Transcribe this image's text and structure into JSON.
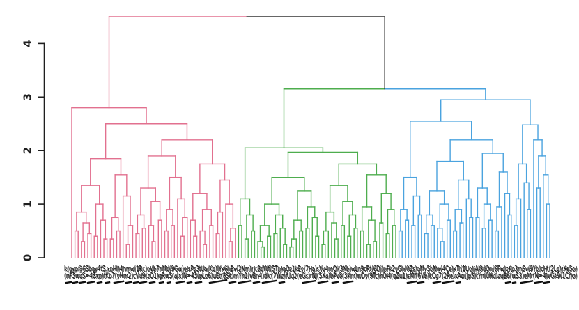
{
  "chart_data": {
    "type": "dendrogram",
    "title": "",
    "xlabel": "",
    "ylabel": "",
    "grid": false,
    "legend": "none",
    "y_axis": {
      "ticks": [
        0,
        1,
        2,
        3,
        4
      ],
      "tick_labels": [
        "0",
        "1",
        "2",
        "3",
        "4"
      ],
      "ylim": [
        0,
        4.6
      ],
      "color": "#1f1f1f"
    },
    "link_color": "#333333",
    "root_height": 4.5,
    "mixed_join_height": 3.15,
    "n_leaves": 150,
    "tree": [
      4.5,
      {
        "cluster": 0
      },
      [
        3.15,
        {
          "cluster": 1
        },
        {
          "cluster": 2
        }
      ]
    ],
    "clusters": [
      {
        "name": "cluster-1-pink",
        "color": "#e2708f",
        "leaf_count": 52,
        "tree": [
          2.8,
          0,
          [
            2.5,
            [
              1.85,
              [
                1.35,
                [
                  0.85,
                  [
                    0.5,
                    0,
                    0
                  ],
                  [
                    0.65,
                    [
                      0.3,
                      0,
                      0
                    ],
                    [
                      0.45,
                      0,
                      0
                    ]
                  ]
                ],
                [
                  1.0,
                  [
                    0.4,
                    0,
                    0
                  ],
                  [
                    0.7,
                    0,
                    [
                      0.35,
                      0,
                      0
                    ]
                  ]
                ]
              ],
              [
                1.55,
                [
                  0.75,
                  [
                    0.35,
                    0,
                    0
                  ],
                  [
                    0.5,
                    0,
                    0
                  ]
                ],
                [
                  1.15,
                  0,
                  [
                    0.6,
                    [
                      0.25,
                      0,
                      0
                    ],
                    0
                  ]
                ]
              ]
            ],
            [
              2.2,
              [
                1.9,
                [
                  1.3,
                  [
                    0.8,
                    [
                      0.45,
                      0,
                      0
                    ],
                    [
                      0.55,
                      0,
                      0
                    ]
                  ],
                  [
                    1.05,
                    [
                      0.6,
                      0,
                      [
                        0.3,
                        0,
                        0
                      ]
                    ],
                    [
                      0.7,
                      0,
                      0
                    ]
                  ]
                ],
                [
                  1.5,
                  [
                    0.9,
                    [
                      0.5,
                      0,
                      0
                    ],
                    [
                      0.6,
                      0,
                      0
                    ]
                  ],
                  [
                    1.1,
                    0,
                    [
                      0.75,
                      [
                        0.4,
                        0,
                        0
                      ],
                      0
                    ]
                  ]
                ]
              ],
              [
                1.75,
                [
                  1.2,
                  [
                    0.7,
                    0,
                    [
                      0.4,
                      0,
                      0
                    ]
                  ],
                  [
                    0.9,
                    [
                      0.5,
                      0,
                      [
                        0.25,
                        0,
                        0
                      ]
                    ],
                    [
                      0.6,
                      0,
                      0
                    ]
                  ]
                ],
                [
                  1.45,
                  [
                    0.85,
                    [
                      0.45,
                      0,
                      0
                    ],
                    0
                  ],
                  [
                    1.0,
                    0,
                    [
                      0.55,
                      [
                        0.3,
                        0,
                        0
                      ],
                      0
                    ]
                  ]
                ]
              ]
            ]
          ]
        ]
      },
      {
        "name": "cluster-2-green",
        "color": "#4ead4e",
        "leaf_count": 50,
        "tree": [
          2.05,
          [
            1.1,
            [
              0.6,
              0,
              0
            ],
            [
              0.8,
              [
                0.35,
                0,
                0
              ],
              [
                0.5,
                0,
                0
              ]
            ]
          ],
          [
            1.97,
            [
              1.5,
              [
                1.0,
                [
                  0.6,
                  [
                    0.3,
                    0,
                    [
                      0.2,
                      0,
                      0
                    ]
                  ],
                  [
                    0.4,
                    0,
                    0
                  ]
                ],
                [
                  0.8,
                  [
                    0.45,
                    0,
                    0
                  ],
                  [
                    0.55,
                    0,
                    [
                      0.25,
                      0,
                      0
                    ]
                  ]
                ]
              ],
              [
                1.25,
                [
                  0.7,
                  [
                    0.35,
                    [
                      0.2,
                      0,
                      0
                    ],
                    0
                  ],
                  [
                    0.5,
                    0,
                    0
                  ]
                ],
                [
                  0.95,
                  [
                    0.55,
                    0,
                    0
                  ],
                  [
                    0.75,
                    0,
                    [
                      0.4,
                      0,
                      0
                    ]
                  ]
                ]
              ]
            ],
            [
              1.75,
              [
                1.35,
                [
                  0.85,
                  [
                    0.5,
                    [
                      0.25,
                      0,
                      0
                    ],
                    0
                  ],
                  [
                    0.65,
                    0,
                    [
                      0.35,
                      0,
                      0
                    ]
                  ]
                ],
                [
                  1.05,
                  [
                    0.6,
                    0,
                    0
                  ],
                  [
                    0.8,
                    [
                      0.4,
                      0,
                      0
                    ],
                    [
                      0.55,
                      0,
                      0
                    ]
                  ]
                ]
              ],
              [
                1.55,
                [
                  0.95,
                  [
                    0.5,
                    0,
                    0
                  ],
                  [
                    0.7,
                    [
                      0.25,
                      0,
                      0
                    ],
                    [
                      0.3,
                      0,
                      0
                    ]
                  ]
                ],
                [
                  1.2,
                  [
                    0.65,
                    0,
                    0
                  ],
                  [
                    0.9,
                    [
                      0.45,
                      0,
                      0
                    ],
                    [
                      0.6,
                      0,
                      0
                    ]
                  ]
                ]
              ]
            ]
          ]
        ]
      },
      {
        "name": "cluster-3-blue",
        "color": "#4aa3df",
        "leaf_count": 48,
        "tree": [
          2.95,
          [
            2.55,
            [
              1.5,
              [
                0.9,
                [
                  0.5,
                  0,
                  0
                ],
                [
                  0.7,
                  0,
                  0
                ]
              ],
              [
                1.15,
                [
                  0.6,
                  0,
                  0
                ],
                [
                  0.8,
                  0,
                  0
                ]
              ]
            ],
            [
              2.2,
              [
                1.8,
                [
                  1.25,
                  [
                    0.8,
                    [
                      0.45,
                      0,
                      0
                    ],
                    [
                      0.6,
                      0,
                      0
                    ]
                  ],
                  [
                    1.0,
                    [
                      0.55,
                      0,
                      [
                        0.3,
                        0,
                        0
                      ]
                    ],
                    [
                      0.7,
                      0,
                      0
                    ]
                  ]
                ],
                [
                  1.45,
                  [
                    0.9,
                    [
                      0.5,
                      0,
                      0
                    ],
                    [
                      0.65,
                      0,
                      0
                    ]
                  ],
                  [
                    1.1,
                    0,
                    [
                      0.75,
                      0,
                      0
                    ]
                  ]
                ]
              ],
              [
                1.95,
                [
                  1.3,
                  [
                    0.75,
                    0,
                    0
                  ],
                  [
                    1.0,
                    [
                      0.55,
                      0,
                      0
                    ],
                    [
                      0.7,
                      0,
                      0
                    ]
                  ]
                ],
                [
                  1.6,
                  [
                    0.95,
                    [
                      0.5,
                      0,
                      0
                    ],
                    0
                  ],
                  [
                    1.2,
                    0,
                    [
                      0.8,
                      0,
                      0
                    ]
                  ]
                ]
              ]
            ]
          ],
          [
            2.48,
            [
              1.75,
              [
                1.1,
                [
                  0.6,
                  0,
                  0
                ],
                0
              ],
              [
                1.4,
                0,
                [
                  0.9,
                  0,
                  0
                ]
              ]
            ],
            [
              2.2,
              0,
              [
                1.9,
                [
                  1.3,
                  0,
                  0
                ],
                [
                  1.55,
                  0,
                  [
                    1.0,
                    0,
                    0
                  ]
                ]
              ]
            ]
          ]
        ]
      }
    ],
    "x_axis": {
      "labels_legible": false,
      "smear_row1": "k(qyp@6Sbqy4tS,xpHl)4hmw(1Rc)oVb7nMd(9Gw)eIsPz3tUa(Kq)lYx6hBv(2Nm)rJc8dWf(5Tp)gOz1kEy(7Ha)sVu4mQi(3Xb)wLn9cRt(6Dj)pFk2vGh(0Zs)qMy5bNw(4Ce)xTr(1Uo)jAl8dQn(6Fw)zKp3mSv(9Yb)cHt(2Lg)rXe5o)",
      "smear_row2": "(nF3wqS=48xp)tKb7(yHm2)cVd9(zQ1)gRw5(aJx)N=43(pLo6)uEt(8Sk)mYh1(vBn4)dIc(7Wz)fUq2(eGs)rNj(5Xa)bPv8(3Km)wDy(9Tc)hOl4(qZu1)sMf(6Vb)kCg7(2Re)xAw(Jp5)tYn(0Hd)zqB6(wS3)eMr(N=4)vGk9(1Cf)o)",
      "tail_dashes": [
        [
          95,
          7
        ],
        [
          105,
          6
        ],
        [
          114,
          8
        ],
        [
          126,
          9
        ],
        [
          140,
          6
        ],
        [
          152,
          5
        ],
        [
          164,
          13
        ],
        [
          181,
          7
        ],
        [
          192,
          6
        ],
        [
          201,
          9
        ],
        [
          215,
          7
        ],
        [
          229,
          5
        ],
        [
          240,
          4
        ],
        [
          253,
          11
        ],
        [
          269,
          6
        ],
        [
          281,
          8
        ],
        [
          301,
          24
        ],
        [
          329,
          9
        ],
        [
          343,
          16
        ],
        [
          364,
          8
        ],
        [
          377,
          19
        ],
        [
          401,
          7
        ],
        [
          435,
          17
        ],
        [
          457,
          13
        ],
        [
          477,
          8
        ],
        [
          493,
          13
        ],
        [
          585,
          12
        ],
        [
          600,
          8
        ],
        [
          622,
          10
        ],
        [
          636,
          15
        ],
        [
          655,
          5
        ],
        [
          726,
          6
        ],
        [
          736,
          4
        ],
        [
          748,
          16
        ],
        [
          768,
          10
        ],
        [
          781,
          7
        ]
      ]
    }
  }
}
